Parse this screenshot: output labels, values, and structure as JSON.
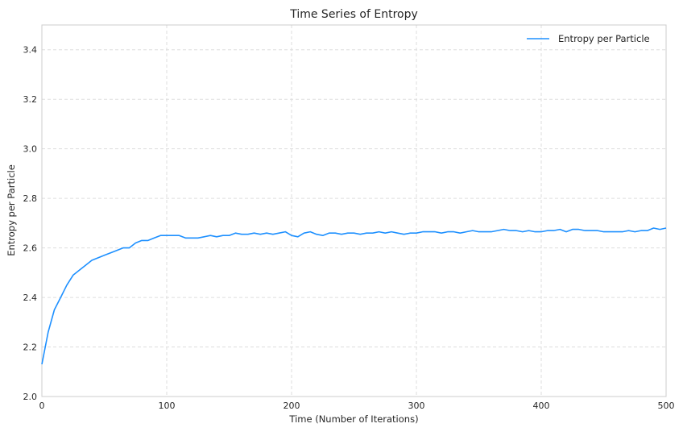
{
  "chart_data": {
    "type": "line",
    "title": "Time Series of Entropy",
    "xlabel": "Time (Number of Iterations)",
    "ylabel": "Entropy per Particle",
    "xlim": [
      0,
      500
    ],
    "ylim": [
      2.0,
      3.5
    ],
    "xticks": [
      0,
      100,
      200,
      300,
      400,
      500
    ],
    "yticks": [
      "2.0",
      "2.2",
      "2.4",
      "2.6",
      "2.8",
      "3.0",
      "3.2",
      "3.4"
    ],
    "grid": true,
    "legend_position": "top-right",
    "series": [
      {
        "name": "Entropy per Particle",
        "color": "#1e90ff",
        "x": [
          0,
          5,
          10,
          15,
          20,
          25,
          30,
          35,
          40,
          45,
          50,
          55,
          60,
          65,
          70,
          75,
          80,
          85,
          90,
          95,
          100,
          105,
          110,
          115,
          120,
          125,
          130,
          135,
          140,
          145,
          150,
          155,
          160,
          165,
          170,
          175,
          180,
          185,
          190,
          195,
          200,
          205,
          210,
          215,
          220,
          225,
          230,
          235,
          240,
          245,
          250,
          255,
          260,
          265,
          270,
          275,
          280,
          285,
          290,
          295,
          300,
          305,
          310,
          315,
          320,
          325,
          330,
          335,
          340,
          345,
          350,
          355,
          360,
          365,
          370,
          375,
          380,
          385,
          390,
          395,
          400,
          405,
          410,
          415,
          420,
          425,
          430,
          435,
          440,
          445,
          450,
          455,
          460,
          465,
          470,
          475,
          480,
          485,
          490,
          495,
          500
        ],
        "values": [
          2.13,
          2.26,
          2.35,
          2.4,
          2.45,
          2.49,
          2.51,
          2.53,
          2.55,
          2.56,
          2.57,
          2.58,
          2.59,
          2.6,
          2.6,
          2.62,
          2.63,
          2.63,
          2.64,
          2.65,
          2.65,
          2.65,
          2.65,
          2.64,
          2.64,
          2.64,
          2.645,
          2.65,
          2.645,
          2.65,
          2.65,
          2.66,
          2.655,
          2.655,
          2.66,
          2.655,
          2.66,
          2.655,
          2.66,
          2.665,
          2.65,
          2.645,
          2.66,
          2.665,
          2.655,
          2.65,
          2.66,
          2.66,
          2.655,
          2.66,
          2.66,
          2.655,
          2.66,
          2.66,
          2.665,
          2.66,
          2.665,
          2.66,
          2.655,
          2.66,
          2.66,
          2.665,
          2.665,
          2.665,
          2.66,
          2.665,
          2.665,
          2.66,
          2.665,
          2.67,
          2.665,
          2.665,
          2.665,
          2.67,
          2.675,
          2.67,
          2.67,
          2.665,
          2.67,
          2.665,
          2.665,
          2.67,
          2.67,
          2.675,
          2.665,
          2.675,
          2.675,
          2.67,
          2.67,
          2.67,
          2.665,
          2.665,
          2.665,
          2.665,
          2.67,
          2.665,
          2.67,
          2.67,
          2.68,
          2.675,
          2.68
        ]
      }
    ]
  }
}
